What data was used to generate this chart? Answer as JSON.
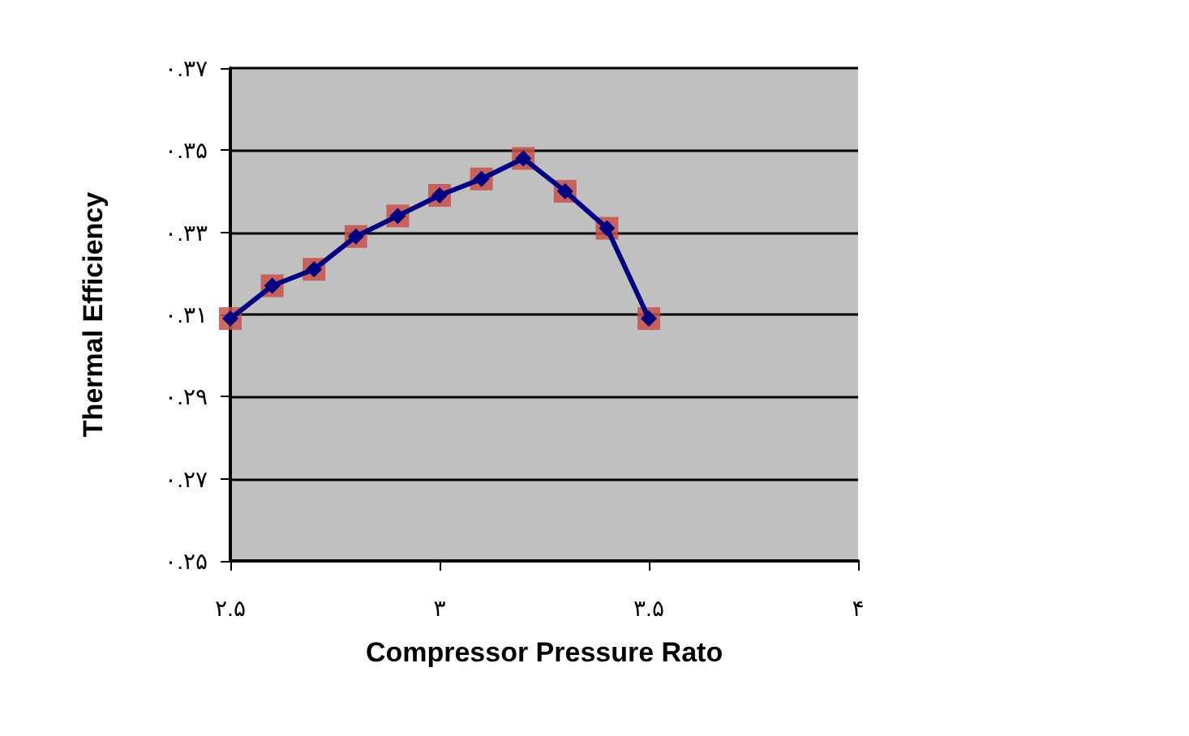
{
  "chart_data": {
    "type": "line",
    "xlabel": "Compressor Pressure Rato",
    "ylabel": "Thermal Efficiency",
    "x": [
      2.5,
      2.6,
      2.7,
      2.8,
      2.9,
      3.0,
      3.1,
      3.2,
      3.3,
      3.4,
      3.5
    ],
    "series": [
      {
        "type": "scatter",
        "marker": "square",
        "color": "#c8504a",
        "values": [
          0.309,
          0.317,
          0.321,
          0.329,
          0.334,
          0.339,
          0.343,
          0.348,
          0.34,
          0.331,
          0.309
        ]
      },
      {
        "marker": "diamond",
        "color": "#000080",
        "values": [
          0.309,
          0.317,
          0.321,
          0.329,
          0.334,
          0.339,
          0.343,
          0.348,
          0.34,
          0.331,
          0.309
        ]
      }
    ],
    "xlim": [
      2.5,
      4
    ],
    "xticks": [
      {
        "value": 2.5,
        "label": "۲.۵"
      },
      {
        "value": 3,
        "label": "۳"
      },
      {
        "value": 3.5,
        "label": "۳.۵"
      },
      {
        "value": 4,
        "label": "۴"
      }
    ],
    "ylim": [
      0.25,
      0.37
    ],
    "yticks": [
      {
        "value": 0.25,
        "label": "۰.۲۵"
      },
      {
        "value": 0.27,
        "label": "۰.۲۷"
      },
      {
        "value": 0.29,
        "label": "۰.۲۹"
      },
      {
        "value": 0.31,
        "label": "۰.۳۱"
      },
      {
        "value": 0.33,
        "label": "۰.۳۳"
      },
      {
        "value": 0.35,
        "label": "۰.۳۵"
      },
      {
        "value": 0.37,
        "label": "۰.۳۷"
      }
    ],
    "grid": "y",
    "line_style": "solid"
  }
}
